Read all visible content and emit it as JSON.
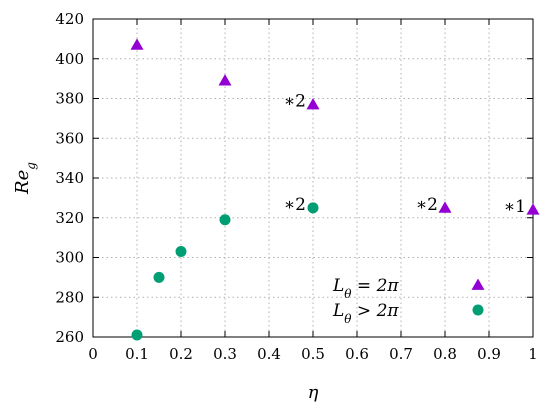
{
  "chart_data": {
    "type": "scatter",
    "xlabel": "η",
    "ylabel": "Re_g",
    "xlim": [
      0,
      1
    ],
    "ylim": [
      260,
      420
    ],
    "x_ticks": [
      "0",
      "0.1",
      "0.2",
      "0.3",
      "0.4",
      "0.5",
      "0.6",
      "0.7",
      "0.8",
      "0.9",
      "1"
    ],
    "y_ticks": [
      "260",
      "280",
      "300",
      "320",
      "340",
      "360",
      "380",
      "400",
      "420"
    ],
    "grid": true,
    "legend_position": "bottom-right",
    "series": [
      {
        "name": "L_θ = 2π",
        "marker": "triangle",
        "color": "#9400d3",
        "points": [
          {
            "x": 0.1,
            "y": 407
          },
          {
            "x": 0.3,
            "y": 389
          },
          {
            "x": 0.5,
            "y": 377
          },
          {
            "x": 0.8,
            "y": 325
          },
          {
            "x": 1.0,
            "y": 324
          }
        ]
      },
      {
        "name": "L_θ > 2π",
        "marker": "circle",
        "color": "#009e73",
        "points": [
          {
            "x": 0.1,
            "y": 261
          },
          {
            "x": 0.15,
            "y": 290
          },
          {
            "x": 0.2,
            "y": 303
          },
          {
            "x": 0.3,
            "y": 319
          },
          {
            "x": 0.5,
            "y": 325
          }
        ]
      }
    ],
    "annotations": [
      {
        "text": "∗2",
        "x": 0.5,
        "y": 377
      },
      {
        "text": "∗2",
        "x": 0.5,
        "y": 325
      },
      {
        "text": "∗2",
        "x": 0.8,
        "y": 325
      },
      {
        "text": "∗1",
        "x": 1.0,
        "y": 324
      }
    ]
  }
}
